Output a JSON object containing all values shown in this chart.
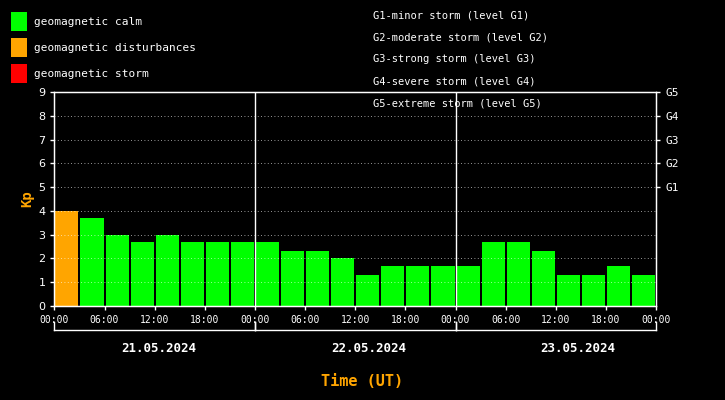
{
  "background_color": "#000000",
  "plot_bg_color": "#000000",
  "bar_values": [
    4.0,
    3.7,
    3.0,
    2.7,
    3.0,
    2.7,
    2.7,
    2.7,
    2.7,
    2.3,
    2.3,
    2.0,
    1.3,
    1.7,
    1.7,
    1.7,
    1.7,
    2.7,
    2.7,
    2.3,
    1.3,
    1.3,
    1.7,
    1.3
  ],
  "bar_colors": [
    "#FFA500",
    "#00FF00",
    "#00FF00",
    "#00FF00",
    "#00FF00",
    "#00FF00",
    "#00FF00",
    "#00FF00",
    "#00FF00",
    "#00FF00",
    "#00FF00",
    "#00FF00",
    "#00FF00",
    "#00FF00",
    "#00FF00",
    "#00FF00",
    "#00FF00",
    "#00FF00",
    "#00FF00",
    "#00FF00",
    "#00FF00",
    "#00FF00",
    "#00FF00",
    "#00FF00"
  ],
  "ylim": [
    0,
    9
  ],
  "yticks": [
    0,
    1,
    2,
    3,
    4,
    5,
    6,
    7,
    8,
    9
  ],
  "right_labels": [
    "G1",
    "G2",
    "G3",
    "G4",
    "G5"
  ],
  "right_label_yvals": [
    5,
    6,
    7,
    8,
    9
  ],
  "day_labels": [
    "21.05.2024",
    "22.05.2024",
    "23.05.2024"
  ],
  "xlabel": "Time (UT)",
  "ylabel": "Kp",
  "xlabel_color": "#FFA500",
  "ylabel_color": "#FFA500",
  "tick_color": "#FFFFFF",
  "text_color": "#FFFFFF",
  "grid_color": "#FFFFFF",
  "legend_items": [
    {
      "label": "geomagnetic calm",
      "color": "#00FF00"
    },
    {
      "label": "geomagnetic disturbances",
      "color": "#FFA500"
    },
    {
      "label": "geomagnetic storm",
      "color": "#FF0000"
    }
  ],
  "legend_right_lines": [
    "G1-minor storm (level G1)",
    "G2-moderate storm (level G2)",
    "G3-strong storm (level G3)",
    "G4-severe storm (level G4)",
    "G5-extreme storm (level G5)"
  ],
  "xtick_labels_per_day": [
    "00:00",
    "06:00",
    "12:00",
    "18:00"
  ],
  "n_bars_per_day": 8,
  "total_days": 3
}
